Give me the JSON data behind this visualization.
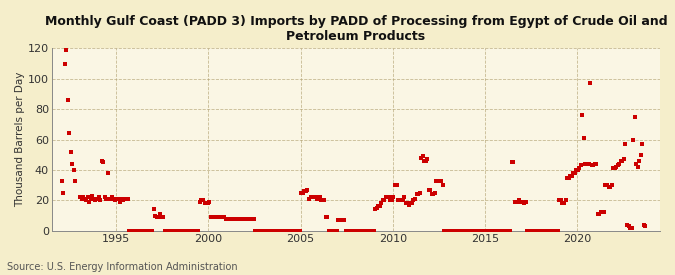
{
  "title": "Monthly Gulf Coast (PADD 3) Imports by PADD of Processing from Egypt of Crude Oil and\nPetroleum Products",
  "ylabel": "Thousand Barrels per Day",
  "source": "Source: U.S. Energy Information Administration",
  "background_color": "#f5eecb",
  "plot_background_color": "#faf6e4",
  "marker_color": "#cc0000",
  "xlim": [
    1991.5,
    2024.5
  ],
  "ylim": [
    0,
    120
  ],
  "yticks": [
    0,
    20,
    40,
    60,
    80,
    100,
    120
  ],
  "xticks": [
    1995,
    2000,
    2005,
    2010,
    2015,
    2020
  ],
  "data_monthly": [
    [
      1992,
      1,
      33
    ],
    [
      1992,
      2,
      25
    ],
    [
      1992,
      3,
      110
    ],
    [
      1992,
      4,
      119
    ],
    [
      1992,
      5,
      86
    ],
    [
      1992,
      6,
      64
    ],
    [
      1992,
      7,
      52
    ],
    [
      1992,
      8,
      44
    ],
    [
      1992,
      9,
      40
    ],
    [
      1992,
      10,
      33
    ],
    [
      1993,
      1,
      22
    ],
    [
      1993,
      2,
      21
    ],
    [
      1993,
      3,
      22
    ],
    [
      1993,
      4,
      21
    ],
    [
      1993,
      5,
      20
    ],
    [
      1993,
      6,
      22
    ],
    [
      1993,
      7,
      19
    ],
    [
      1993,
      8,
      21
    ],
    [
      1993,
      9,
      23
    ],
    [
      1993,
      10,
      21
    ],
    [
      1993,
      11,
      20
    ],
    [
      1993,
      12,
      21
    ],
    [
      1994,
      1,
      22
    ],
    [
      1994,
      2,
      20
    ],
    [
      1994,
      3,
      46
    ],
    [
      1994,
      4,
      45
    ],
    [
      1994,
      5,
      22
    ],
    [
      1994,
      6,
      21
    ],
    [
      1994,
      7,
      38
    ],
    [
      1994,
      8,
      21
    ],
    [
      1994,
      9,
      21
    ],
    [
      1994,
      10,
      22
    ],
    [
      1994,
      11,
      21
    ],
    [
      1994,
      12,
      20
    ],
    [
      1995,
      1,
      21
    ],
    [
      1995,
      2,
      21
    ],
    [
      1995,
      3,
      19
    ],
    [
      1995,
      4,
      21
    ],
    [
      1995,
      5,
      20
    ],
    [
      1995,
      6,
      21
    ],
    [
      1995,
      7,
      21
    ],
    [
      1995,
      8,
      21
    ],
    [
      1995,
      9,
      0
    ],
    [
      1995,
      10,
      0
    ],
    [
      1995,
      11,
      0
    ],
    [
      1995,
      12,
      0
    ],
    [
      1996,
      1,
      0
    ],
    [
      1996,
      2,
      0
    ],
    [
      1996,
      3,
      0
    ],
    [
      1996,
      4,
      0
    ],
    [
      1996,
      5,
      0
    ],
    [
      1996,
      6,
      0
    ],
    [
      1996,
      7,
      0
    ],
    [
      1996,
      8,
      0
    ],
    [
      1996,
      9,
      0
    ],
    [
      1996,
      10,
      0
    ],
    [
      1996,
      11,
      0
    ],
    [
      1996,
      12,
      0
    ],
    [
      1997,
      1,
      14
    ],
    [
      1997,
      2,
      10
    ],
    [
      1997,
      3,
      9
    ],
    [
      1997,
      4,
      9
    ],
    [
      1997,
      5,
      11
    ],
    [
      1997,
      6,
      9
    ],
    [
      1997,
      7,
      9
    ],
    [
      1997,
      8,
      0
    ],
    [
      1997,
      9,
      0
    ],
    [
      1997,
      10,
      0
    ],
    [
      1997,
      11,
      0
    ],
    [
      1997,
      12,
      0
    ],
    [
      1998,
      1,
      0
    ],
    [
      1998,
      2,
      0
    ],
    [
      1998,
      3,
      0
    ],
    [
      1998,
      4,
      0
    ],
    [
      1998,
      5,
      0
    ],
    [
      1998,
      6,
      0
    ],
    [
      1998,
      7,
      0
    ],
    [
      1998,
      8,
      0
    ],
    [
      1998,
      9,
      0
    ],
    [
      1998,
      10,
      0
    ],
    [
      1998,
      11,
      0
    ],
    [
      1998,
      12,
      0
    ],
    [
      1999,
      1,
      0
    ],
    [
      1999,
      2,
      0
    ],
    [
      1999,
      3,
      0
    ],
    [
      1999,
      4,
      0
    ],
    [
      1999,
      5,
      0
    ],
    [
      1999,
      6,
      0
    ],
    [
      1999,
      7,
      19
    ],
    [
      1999,
      8,
      20
    ],
    [
      1999,
      9,
      20
    ],
    [
      1999,
      10,
      18
    ],
    [
      1999,
      11,
      18
    ],
    [
      1999,
      12,
      18
    ],
    [
      2000,
      1,
      19
    ],
    [
      2000,
      2,
      9
    ],
    [
      2000,
      3,
      9
    ],
    [
      2000,
      4,
      9
    ],
    [
      2000,
      5,
      9
    ],
    [
      2000,
      6,
      9
    ],
    [
      2000,
      7,
      9
    ],
    [
      2000,
      8,
      9
    ],
    [
      2000,
      9,
      9
    ],
    [
      2000,
      10,
      9
    ],
    [
      2000,
      11,
      9
    ],
    [
      2000,
      12,
      8
    ],
    [
      2001,
      1,
      8
    ],
    [
      2001,
      2,
      8
    ],
    [
      2001,
      3,
      8
    ],
    [
      2001,
      4,
      8
    ],
    [
      2001,
      5,
      8
    ],
    [
      2001,
      6,
      8
    ],
    [
      2001,
      7,
      8
    ],
    [
      2001,
      8,
      8
    ],
    [
      2001,
      9,
      8
    ],
    [
      2001,
      10,
      8
    ],
    [
      2001,
      11,
      8
    ],
    [
      2001,
      12,
      8
    ],
    [
      2002,
      1,
      8
    ],
    [
      2002,
      2,
      8
    ],
    [
      2002,
      3,
      8
    ],
    [
      2002,
      4,
      8
    ],
    [
      2002,
      5,
      8
    ],
    [
      2002,
      6,
      8
    ],
    [
      2002,
      7,
      0
    ],
    [
      2002,
      8,
      0
    ],
    [
      2002,
      9,
      0
    ],
    [
      2002,
      10,
      0
    ],
    [
      2002,
      11,
      0
    ],
    [
      2002,
      12,
      0
    ],
    [
      2003,
      1,
      0
    ],
    [
      2003,
      2,
      0
    ],
    [
      2003,
      3,
      0
    ],
    [
      2003,
      4,
      0
    ],
    [
      2003,
      5,
      0
    ],
    [
      2003,
      6,
      0
    ],
    [
      2003,
      7,
      0
    ],
    [
      2003,
      8,
      0
    ],
    [
      2003,
      9,
      0
    ],
    [
      2003,
      10,
      0
    ],
    [
      2003,
      11,
      0
    ],
    [
      2003,
      12,
      0
    ],
    [
      2004,
      1,
      0
    ],
    [
      2004,
      2,
      0
    ],
    [
      2004,
      3,
      0
    ],
    [
      2004,
      4,
      0
    ],
    [
      2004,
      5,
      0
    ],
    [
      2004,
      6,
      0
    ],
    [
      2004,
      7,
      0
    ],
    [
      2004,
      8,
      0
    ],
    [
      2004,
      9,
      0
    ],
    [
      2004,
      10,
      0
    ],
    [
      2004,
      11,
      0
    ],
    [
      2004,
      12,
      0
    ],
    [
      2005,
      1,
      25
    ],
    [
      2005,
      2,
      25
    ],
    [
      2005,
      3,
      26
    ],
    [
      2005,
      4,
      26
    ],
    [
      2005,
      5,
      27
    ],
    [
      2005,
      6,
      21
    ],
    [
      2005,
      7,
      22
    ],
    [
      2005,
      8,
      22
    ],
    [
      2005,
      9,
      22
    ],
    [
      2005,
      10,
      22
    ],
    [
      2005,
      11,
      21
    ],
    [
      2005,
      12,
      22
    ],
    [
      2006,
      1,
      22
    ],
    [
      2006,
      2,
      20
    ],
    [
      2006,
      3,
      20
    ],
    [
      2006,
      4,
      20
    ],
    [
      2006,
      5,
      9
    ],
    [
      2006,
      6,
      9
    ],
    [
      2006,
      7,
      0
    ],
    [
      2006,
      8,
      0
    ],
    [
      2006,
      9,
      0
    ],
    [
      2006,
      10,
      0
    ],
    [
      2006,
      11,
      0
    ],
    [
      2006,
      12,
      0
    ],
    [
      2007,
      1,
      7
    ],
    [
      2007,
      2,
      7
    ],
    [
      2007,
      3,
      7
    ],
    [
      2007,
      4,
      7
    ],
    [
      2007,
      5,
      7
    ],
    [
      2007,
      6,
      0
    ],
    [
      2007,
      7,
      0
    ],
    [
      2007,
      8,
      0
    ],
    [
      2007,
      9,
      0
    ],
    [
      2007,
      10,
      0
    ],
    [
      2007,
      11,
      0
    ],
    [
      2007,
      12,
      0
    ],
    [
      2008,
      1,
      0
    ],
    [
      2008,
      2,
      0
    ],
    [
      2008,
      3,
      0
    ],
    [
      2008,
      4,
      0
    ],
    [
      2008,
      5,
      0
    ],
    [
      2008,
      6,
      0
    ],
    [
      2008,
      7,
      0
    ],
    [
      2008,
      8,
      0
    ],
    [
      2008,
      9,
      0
    ],
    [
      2008,
      10,
      0
    ],
    [
      2008,
      11,
      0
    ],
    [
      2008,
      12,
      0
    ],
    [
      2009,
      1,
      14
    ],
    [
      2009,
      2,
      15
    ],
    [
      2009,
      3,
      16
    ],
    [
      2009,
      4,
      16
    ],
    [
      2009,
      5,
      18
    ],
    [
      2009,
      6,
      20
    ],
    [
      2009,
      7,
      20
    ],
    [
      2009,
      8,
      22
    ],
    [
      2009,
      9,
      22
    ],
    [
      2009,
      10,
      22
    ],
    [
      2009,
      11,
      20
    ],
    [
      2009,
      12,
      20
    ],
    [
      2010,
      1,
      22
    ],
    [
      2010,
      2,
      30
    ],
    [
      2010,
      3,
      30
    ],
    [
      2010,
      4,
      20
    ],
    [
      2010,
      5,
      20
    ],
    [
      2010,
      6,
      20
    ],
    [
      2010,
      7,
      20
    ],
    [
      2010,
      8,
      22
    ],
    [
      2010,
      9,
      18
    ],
    [
      2010,
      10,
      18
    ],
    [
      2010,
      11,
      17
    ],
    [
      2010,
      12,
      18
    ],
    [
      2011,
      1,
      18
    ],
    [
      2011,
      2,
      20
    ],
    [
      2011,
      3,
      21
    ],
    [
      2011,
      4,
      24
    ],
    [
      2011,
      5,
      24
    ],
    [
      2011,
      6,
      25
    ],
    [
      2011,
      7,
      48
    ],
    [
      2011,
      8,
      49
    ],
    [
      2011,
      9,
      46
    ],
    [
      2011,
      10,
      46
    ],
    [
      2011,
      11,
      47
    ],
    [
      2011,
      12,
      27
    ],
    [
      2012,
      1,
      27
    ],
    [
      2012,
      2,
      24
    ],
    [
      2012,
      3,
      24
    ],
    [
      2012,
      4,
      25
    ],
    [
      2012,
      5,
      33
    ],
    [
      2012,
      6,
      33
    ],
    [
      2012,
      7,
      33
    ],
    [
      2012,
      8,
      33
    ],
    [
      2012,
      9,
      30
    ],
    [
      2012,
      10,
      0
    ],
    [
      2012,
      11,
      0
    ],
    [
      2012,
      12,
      0
    ],
    [
      2013,
      1,
      0
    ],
    [
      2013,
      2,
      0
    ],
    [
      2013,
      3,
      0
    ],
    [
      2013,
      4,
      0
    ],
    [
      2013,
      5,
      0
    ],
    [
      2013,
      6,
      0
    ],
    [
      2013,
      7,
      0
    ],
    [
      2013,
      8,
      0
    ],
    [
      2013,
      9,
      0
    ],
    [
      2013,
      10,
      0
    ],
    [
      2013,
      11,
      0
    ],
    [
      2013,
      12,
      0
    ],
    [
      2014,
      1,
      0
    ],
    [
      2014,
      2,
      0
    ],
    [
      2014,
      3,
      0
    ],
    [
      2014,
      4,
      0
    ],
    [
      2014,
      5,
      0
    ],
    [
      2014,
      6,
      0
    ],
    [
      2014,
      7,
      0
    ],
    [
      2014,
      8,
      0
    ],
    [
      2014,
      9,
      0
    ],
    [
      2014,
      10,
      0
    ],
    [
      2014,
      11,
      0
    ],
    [
      2014,
      12,
      0
    ],
    [
      2015,
      1,
      0
    ],
    [
      2015,
      2,
      0
    ],
    [
      2015,
      3,
      0
    ],
    [
      2015,
      4,
      0
    ],
    [
      2015,
      5,
      0
    ],
    [
      2015,
      6,
      0
    ],
    [
      2015,
      7,
      0
    ],
    [
      2015,
      8,
      0
    ],
    [
      2015,
      9,
      0
    ],
    [
      2015,
      10,
      0
    ],
    [
      2015,
      11,
      0
    ],
    [
      2015,
      12,
      0
    ],
    [
      2016,
      1,
      0
    ],
    [
      2016,
      2,
      0
    ],
    [
      2016,
      3,
      0
    ],
    [
      2016,
      4,
      0
    ],
    [
      2016,
      5,
      0
    ],
    [
      2016,
      6,
      45
    ],
    [
      2016,
      7,
      45
    ],
    [
      2016,
      8,
      19
    ],
    [
      2016,
      9,
      19
    ],
    [
      2016,
      10,
      19
    ],
    [
      2016,
      11,
      20
    ],
    [
      2016,
      12,
      19
    ],
    [
      2017,
      1,
      19
    ],
    [
      2017,
      2,
      18
    ],
    [
      2017,
      3,
      19
    ],
    [
      2017,
      4,
      0
    ],
    [
      2017,
      5,
      0
    ],
    [
      2017,
      6,
      0
    ],
    [
      2017,
      7,
      0
    ],
    [
      2017,
      8,
      0
    ],
    [
      2017,
      9,
      0
    ],
    [
      2017,
      10,
      0
    ],
    [
      2017,
      11,
      0
    ],
    [
      2017,
      12,
      0
    ],
    [
      2018,
      1,
      0
    ],
    [
      2018,
      2,
      0
    ],
    [
      2018,
      3,
      0
    ],
    [
      2018,
      4,
      0
    ],
    [
      2018,
      5,
      0
    ],
    [
      2018,
      6,
      0
    ],
    [
      2018,
      7,
      0
    ],
    [
      2018,
      8,
      0
    ],
    [
      2018,
      9,
      0
    ],
    [
      2018,
      10,
      0
    ],
    [
      2018,
      11,
      0
    ],
    [
      2018,
      12,
      0
    ],
    [
      2019,
      1,
      20
    ],
    [
      2019,
      2,
      20
    ],
    [
      2019,
      3,
      18
    ],
    [
      2019,
      4,
      18
    ],
    [
      2019,
      5,
      20
    ],
    [
      2019,
      6,
      35
    ],
    [
      2019,
      7,
      35
    ],
    [
      2019,
      8,
      36
    ],
    [
      2019,
      9,
      36
    ],
    [
      2019,
      10,
      38
    ],
    [
      2019,
      11,
      38
    ],
    [
      2019,
      12,
      40
    ],
    [
      2020,
      1,
      40
    ],
    [
      2020,
      2,
      41
    ],
    [
      2020,
      3,
      43
    ],
    [
      2020,
      4,
      76
    ],
    [
      2020,
      5,
      61
    ],
    [
      2020,
      6,
      44
    ],
    [
      2020,
      7,
      44
    ],
    [
      2020,
      8,
      44
    ],
    [
      2020,
      9,
      97
    ],
    [
      2020,
      10,
      43
    ],
    [
      2020,
      11,
      43
    ],
    [
      2020,
      12,
      44
    ],
    [
      2021,
      1,
      44
    ],
    [
      2021,
      2,
      11
    ],
    [
      2021,
      3,
      11
    ],
    [
      2021,
      4,
      12
    ],
    [
      2021,
      5,
      12
    ],
    [
      2021,
      6,
      12
    ],
    [
      2021,
      7,
      30
    ],
    [
      2021,
      8,
      30
    ],
    [
      2021,
      9,
      29
    ],
    [
      2021,
      10,
      29
    ],
    [
      2021,
      11,
      30
    ],
    [
      2021,
      12,
      41
    ],
    [
      2022,
      1,
      41
    ],
    [
      2022,
      2,
      42
    ],
    [
      2022,
      3,
      43
    ],
    [
      2022,
      4,
      44
    ],
    [
      2022,
      5,
      46
    ],
    [
      2022,
      6,
      46
    ],
    [
      2022,
      7,
      47
    ],
    [
      2022,
      8,
      57
    ],
    [
      2022,
      9,
      4
    ],
    [
      2022,
      10,
      3
    ],
    [
      2022,
      11,
      2
    ],
    [
      2022,
      12,
      2
    ],
    [
      2023,
      1,
      60
    ],
    [
      2023,
      2,
      75
    ],
    [
      2023,
      3,
      44
    ],
    [
      2023,
      4,
      42
    ],
    [
      2023,
      5,
      46
    ],
    [
      2023,
      6,
      50
    ],
    [
      2023,
      7,
      57
    ],
    [
      2023,
      8,
      4
    ],
    [
      2023,
      9,
      3
    ]
  ]
}
